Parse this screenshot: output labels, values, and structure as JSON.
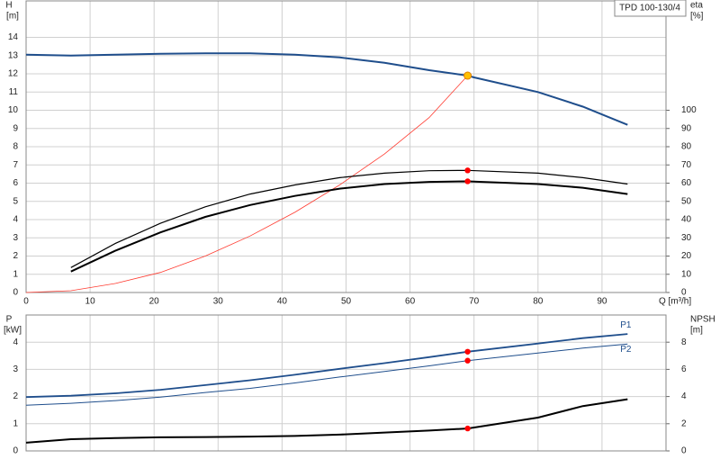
{
  "chart_data": [
    {
      "type": "line",
      "title": "TPD 100-130/4",
      "y_label": "H",
      "y_unit": "[m]",
      "y2_label": "eta",
      "y2_unit": "[%]",
      "x_label": "Q [m³/h]",
      "xlim": [
        0,
        100
      ],
      "xticks": [
        0,
        10,
        20,
        30,
        40,
        50,
        60,
        70,
        80,
        90
      ],
      "xtick_labels": true,
      "ylim": [
        0,
        16
      ],
      "yticks": [
        0,
        1,
        2,
        3,
        4,
        5,
        6,
        7,
        8,
        9,
        10,
        11,
        12,
        13,
        14
      ],
      "y2lim": [
        0,
        160
      ],
      "y2ticks": [
        0,
        10,
        20,
        30,
        40,
        50,
        60,
        70,
        80,
        90,
        100
      ],
      "grid": true,
      "series": [
        {
          "color": "#1f4e8c",
          "line_width": 2,
          "x": [
            0,
            7,
            14,
            21,
            28,
            35,
            42,
            49,
            56,
            63,
            69,
            70,
            80,
            87,
            94
          ],
          "values": [
            13.05,
            13.0,
            13.05,
            13.1,
            13.12,
            13.12,
            13.05,
            12.9,
            12.6,
            12.2,
            11.9,
            11.8,
            11.0,
            10.2,
            9.2
          ]
        },
        {
          "color": "#ff3b30",
          "line_width": 0.8,
          "x": [
            0,
            7,
            14,
            21,
            28,
            35,
            42,
            49,
            56,
            63,
            69
          ],
          "values": [
            0,
            0.1,
            0.5,
            1.1,
            2.0,
            3.1,
            4.4,
            5.9,
            7.6,
            9.6,
            11.9
          ]
        },
        {
          "color": "#000000",
          "line_width": 1.2,
          "axis": "y2",
          "x": [
            7,
            14,
            21,
            28,
            35,
            42,
            49,
            56,
            63,
            69,
            80,
            87,
            94
          ],
          "values": [
            13.7,
            27,
            38,
            47,
            54,
            59,
            63,
            65.5,
            66.8,
            67,
            65.5,
            63,
            59.5
          ]
        },
        {
          "color": "#000000",
          "line_width": 2,
          "axis": "y2",
          "x": [
            7,
            14,
            21,
            28,
            35,
            42,
            49,
            56,
            63,
            69,
            80,
            87,
            94
          ],
          "values": [
            11.5,
            23,
            33,
            41.5,
            48,
            53,
            57,
            59.5,
            60.7,
            61,
            59.5,
            57.5,
            54
          ]
        }
      ],
      "points": [
        {
          "x": 69,
          "y": 11.9,
          "color": "#ffc000"
        },
        {
          "x": 69,
          "y": 67,
          "color": "#ff0000",
          "axis": "y2"
        },
        {
          "x": 69,
          "y": 61,
          "color": "#ff0000",
          "axis": "y2"
        }
      ]
    },
    {
      "type": "line",
      "y_label": "P",
      "y_unit": "[kW]",
      "y2_label": "NPSH",
      "y2_unit": "[m]",
      "xlim": [
        0,
        100
      ],
      "xticks": [
        0,
        10,
        20,
        30,
        40,
        50,
        60,
        70,
        80,
        90
      ],
      "xtick_labels": false,
      "ylim": [
        0,
        5
      ],
      "yticks": [
        0,
        1,
        2,
        3,
        4
      ],
      "y2lim": [
        0,
        10
      ],
      "y2ticks": [
        0,
        2,
        4,
        6,
        8
      ],
      "grid": true,
      "series": [
        {
          "name": "P1",
          "color": "#1f4e8c",
          "line_width": 1.8,
          "x": [
            0,
            7,
            14,
            21,
            28,
            35,
            42,
            49,
            56,
            63,
            69,
            80,
            87,
            94
          ],
          "values": [
            1.98,
            2.03,
            2.12,
            2.25,
            2.42,
            2.6,
            2.8,
            3.02,
            3.23,
            3.45,
            3.65,
            3.95,
            4.15,
            4.3
          ]
        },
        {
          "name": "P2",
          "color": "#1f4e8c",
          "line_width": 1,
          "x": [
            0,
            7,
            14,
            21,
            28,
            35,
            42,
            49,
            56,
            63,
            69,
            80,
            87,
            94
          ],
          "values": [
            1.68,
            1.75,
            1.85,
            1.98,
            2.15,
            2.3,
            2.5,
            2.72,
            2.92,
            3.13,
            3.32,
            3.6,
            3.78,
            3.93
          ]
        },
        {
          "color": "#000000",
          "line_width": 2,
          "axis": "y2",
          "x": [
            0,
            7,
            14,
            21,
            28,
            35,
            42,
            49,
            56,
            63,
            69,
            80,
            87,
            94
          ],
          "values": [
            0.6,
            0.86,
            0.95,
            1.0,
            1.02,
            1.05,
            1.1,
            1.2,
            1.35,
            1.5,
            1.65,
            2.45,
            3.3,
            3.8
          ]
        }
      ],
      "points": [
        {
          "x": 69,
          "y": 3.65,
          "color": "#ff0000"
        },
        {
          "x": 69,
          "y": 3.32,
          "color": "#ff0000"
        },
        {
          "x": 69,
          "y": 1.65,
          "color": "#ff0000",
          "axis": "y2"
        }
      ]
    }
  ]
}
